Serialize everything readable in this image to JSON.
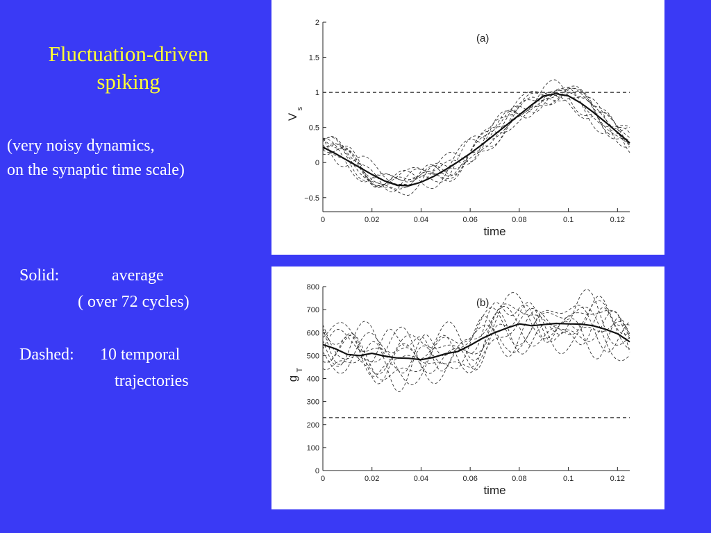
{
  "slide": {
    "title_line1": "Fluctuation-driven",
    "title_line2": "spiking",
    "note_line1": "(very noisy dynamics,",
    "note_line2": "on the synaptic time scale)",
    "solid_label": "Solid:",
    "solid_value": "average",
    "solid_detail": "( over 72 cycles)",
    "dashed_label": "Dashed:",
    "dashed_value": "10 temporal",
    "dashed_detail": "trajectories",
    "colors": {
      "background": "#3a3af5",
      "title": "#ffff33",
      "text": "#ffffff"
    }
  },
  "chart_data": [
    {
      "type": "line",
      "panel_label": "(a)",
      "xlabel": "time",
      "ylabel": "V",
      "ylabel_sub": "s",
      "xlim": [
        0,
        0.125
      ],
      "ylim": [
        -0.7,
        2
      ],
      "x_ticks": [
        0,
        0.02,
        0.04,
        0.06,
        0.08,
        0.1,
        0.12
      ],
      "x_tick_labels": [
        "0",
        "0.02",
        "0.04",
        "0.06",
        "0.08",
        "0.1",
        "0.12"
      ],
      "y_ticks": [
        -0.5,
        0,
        0.5,
        1,
        1.5,
        2
      ],
      "y_tick_labels": [
        "−0.5",
        "0",
        "0.5",
        "1",
        "1.5",
        "2"
      ],
      "threshold": 1,
      "series": [
        {
          "style": "solid",
          "x": [
            0,
            0.005,
            0.01,
            0.015,
            0.02,
            0.025,
            0.03,
            0.035,
            0.04,
            0.045,
            0.05,
            0.055,
            0.06,
            0.065,
            0.07,
            0.075,
            0.08,
            0.085,
            0.09,
            0.095,
            0.1,
            0.105,
            0.11,
            0.115,
            0.12,
            0.125
          ],
          "y": [
            0.22,
            0.13,
            0.03,
            -0.07,
            -0.17,
            -0.26,
            -0.32,
            -0.33,
            -0.28,
            -0.2,
            -0.1,
            0.01,
            0.13,
            0.26,
            0.4,
            0.54,
            0.68,
            0.82,
            0.95,
            0.98,
            0.95,
            0.85,
            0.72,
            0.58,
            0.43,
            0.28
          ]
        }
      ],
      "dashed_trajectories": 10,
      "dashed_spread": 0.22
    },
    {
      "type": "line",
      "panel_label": "(b)",
      "xlabel": "time",
      "ylabel": "g",
      "ylabel_sub": "T",
      "xlim": [
        0,
        0.125
      ],
      "ylim": [
        0,
        800
      ],
      "x_ticks": [
        0,
        0.02,
        0.04,
        0.06,
        0.08,
        0.1,
        0.12
      ],
      "x_tick_labels": [
        "0",
        "0.02",
        "0.04",
        "0.06",
        "0.08",
        "0.1",
        "0.12"
      ],
      "y_ticks": [
        0,
        100,
        200,
        300,
        400,
        500,
        600,
        700,
        800
      ],
      "y_tick_labels": [
        "0",
        "100",
        "200",
        "300",
        "400",
        "500",
        "600",
        "700",
        "800"
      ],
      "threshold": 230,
      "series": [
        {
          "style": "solid",
          "x": [
            0,
            0.005,
            0.01,
            0.015,
            0.02,
            0.025,
            0.03,
            0.035,
            0.04,
            0.045,
            0.05,
            0.055,
            0.06,
            0.065,
            0.07,
            0.075,
            0.08,
            0.085,
            0.09,
            0.095,
            0.1,
            0.105,
            0.11,
            0.115,
            0.12,
            0.125
          ],
          "y": [
            548,
            530,
            505,
            500,
            510,
            498,
            490,
            488,
            482,
            492,
            508,
            518,
            545,
            575,
            600,
            620,
            638,
            630,
            635,
            640,
            638,
            637,
            630,
            615,
            595,
            560
          ]
        }
      ],
      "dashed_trajectories": 10,
      "dashed_spread": 130
    }
  ]
}
